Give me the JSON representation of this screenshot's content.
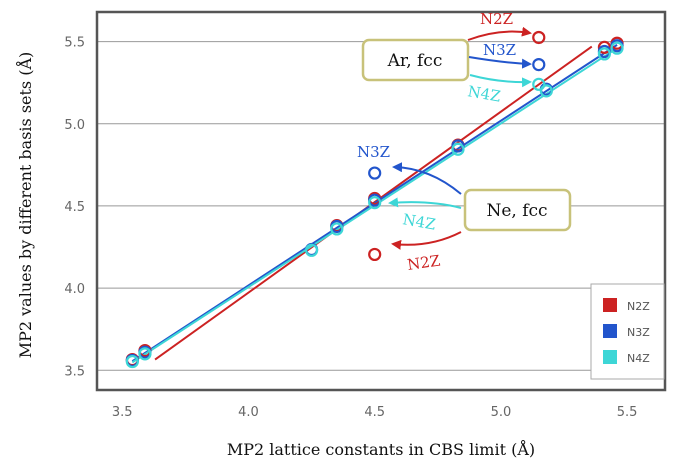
{
  "chart_data": {
    "type": "scatter",
    "xlabel": "MP2 lattice constants in CBS limit (Å)",
    "ylabel": "MP2 values by different basis sets (Å)",
    "xlim": [
      3.4,
      5.65
    ],
    "ylim": [
      3.38,
      5.68
    ],
    "xticks": [
      3.5,
      4.0,
      4.5,
      5.0,
      5.5
    ],
    "yticks": [
      3.5,
      4.0,
      4.5,
      5.0,
      5.5
    ],
    "xtick_labels": [
      "3.5",
      "4.0",
      "4.5",
      "5.0",
      "5.5"
    ],
    "ytick_labels": [
      "3.5",
      "4.0",
      "4.5",
      "5.0",
      "5.5"
    ],
    "grid": "horizontal",
    "series": [
      {
        "name": "N2Z",
        "color": "#cc2222",
        "points": [
          [
            3.54,
            3.565
          ],
          [
            3.59,
            3.62
          ],
          [
            4.35,
            4.38
          ],
          [
            4.5,
            4.545
          ],
          [
            4.5,
            4.205
          ],
          [
            4.83,
            4.87
          ],
          [
            5.15,
            5.525
          ],
          [
            5.41,
            5.465
          ],
          [
            5.46,
            5.49
          ]
        ],
        "fit": [
          [
            3.63,
            3.565
          ],
          [
            5.36,
            5.47
          ]
        ]
      },
      {
        "name": "N3Z",
        "color": "#2255cc",
        "points": [
          [
            3.54,
            3.56
          ],
          [
            3.59,
            3.61
          ],
          [
            4.25,
            4.235
          ],
          [
            4.35,
            4.375
          ],
          [
            4.5,
            4.535
          ],
          [
            4.5,
            4.7
          ],
          [
            4.83,
            4.865
          ],
          [
            5.15,
            5.36
          ],
          [
            5.18,
            5.21
          ],
          [
            5.41,
            5.44
          ],
          [
            5.46,
            5.475
          ]
        ],
        "fit": [
          [
            3.54,
            3.555
          ],
          [
            5.46,
            5.48
          ]
        ]
      },
      {
        "name": "N4Z",
        "color": "#3dd6d6",
        "points": [
          [
            3.54,
            3.553
          ],
          [
            3.59,
            3.6
          ],
          [
            4.25,
            4.23
          ],
          [
            4.35,
            4.36
          ],
          [
            4.5,
            4.52
          ],
          [
            4.83,
            4.845
          ],
          [
            5.15,
            5.24
          ],
          [
            5.18,
            5.2
          ],
          [
            5.41,
            5.425
          ],
          [
            5.46,
            5.46
          ]
        ],
        "fit": [
          [
            3.54,
            3.548
          ],
          [
            5.46,
            5.46
          ]
        ]
      }
    ],
    "annotations": {
      "ar_box": "Ar, fcc",
      "ne_box": "Ne, fcc",
      "ar_n2z": "N2Z",
      "ar_n3z": "N3Z",
      "ar_n4z": "N4Z",
      "ne_n3z": "N3Z",
      "ne_n4z": "N4Z",
      "ne_n2z": "N2Z"
    },
    "legend": {
      "position": "bottom-right",
      "entries": [
        "N2Z",
        "N3Z",
        "N4Z"
      ]
    }
  }
}
